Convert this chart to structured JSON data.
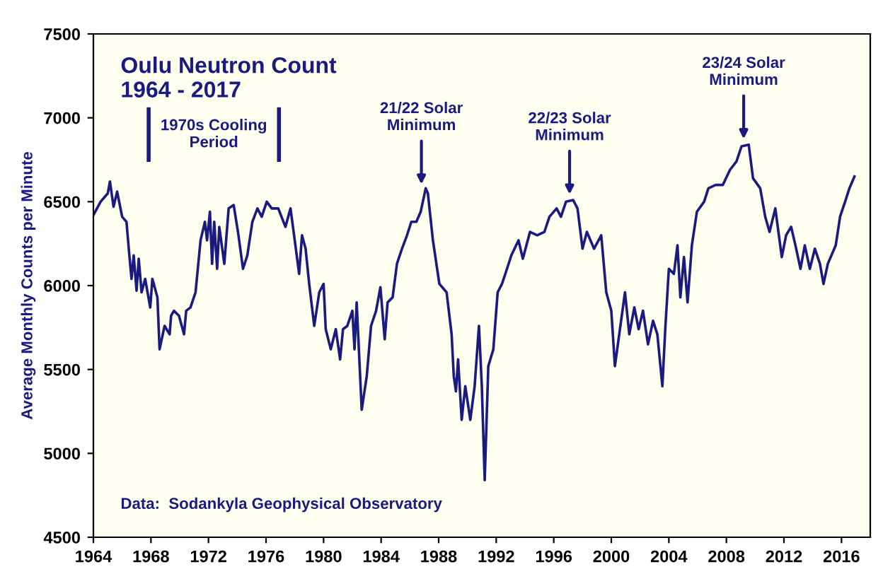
{
  "chart_data": {
    "type": "line",
    "title": "Oulu Neutron Count\n1964 - 2017",
    "ylabel": "Average Monthly Counts per Minute",
    "x": [
      1964.0,
      1964.5,
      1965.0,
      1965.15,
      1965.4,
      1965.65,
      1966.0,
      1966.3,
      1966.5,
      1966.65,
      1966.8,
      1967.0,
      1967.15,
      1967.35,
      1967.6,
      1967.95,
      1968.1,
      1968.45,
      1968.6,
      1968.95,
      1969.3,
      1969.4,
      1969.6,
      1969.95,
      1970.3,
      1970.45,
      1970.75,
      1971.1,
      1971.45,
      1971.75,
      1971.9,
      1972.1,
      1972.25,
      1972.4,
      1972.6,
      1972.75,
      1973.1,
      1973.4,
      1973.75,
      1974.05,
      1974.4,
      1974.7,
      1975.05,
      1975.4,
      1975.7,
      1976.05,
      1976.4,
      1976.85,
      1977.35,
      1977.7,
      1977.95,
      1978.3,
      1978.5,
      1978.75,
      1979.0,
      1979.35,
      1979.7,
      1980.0,
      1980.15,
      1980.5,
      1980.85,
      1981.15,
      1981.35,
      1981.65,
      1982.0,
      1982.15,
      1982.3,
      1982.65,
      1983.0,
      1983.3,
      1983.65,
      1983.95,
      1984.25,
      1984.45,
      1984.8,
      1985.1,
      1985.45,
      1985.8,
      1986.1,
      1986.45,
      1986.75,
      1987.1,
      1987.25,
      1987.6,
      1988.05,
      1988.55,
      1988.9,
      1989.05,
      1989.2,
      1989.35,
      1989.6,
      1989.85,
      1990.2,
      1990.5,
      1990.8,
      1991.0,
      1991.2,
      1991.45,
      1991.8,
      1992.1,
      1992.4,
      1992.75,
      1993.05,
      1993.55,
      1993.85,
      1994.35,
      1994.85,
      1995.35,
      1995.7,
      1996.2,
      1996.5,
      1996.85,
      1997.35,
      1997.65,
      1998.0,
      1998.3,
      1998.8,
      1999.3,
      1999.65,
      2000.0,
      2000.25,
      2000.6,
      2000.95,
      2001.25,
      2001.6,
      2001.9,
      2002.2,
      2002.55,
      2002.9,
      2003.2,
      2003.55,
      2003.75,
      2004.0,
      2004.35,
      2004.6,
      2004.8,
      2005.05,
      2005.3,
      2005.6,
      2005.95,
      2006.45,
      2006.75,
      2007.25,
      2007.75,
      2008.25,
      2008.7,
      2009.05,
      2009.55,
      2009.85,
      2010.35,
      2010.7,
      2011.0,
      2011.4,
      2011.85,
      2012.15,
      2012.5,
      2012.8,
      2013.15,
      2013.45,
      2013.8,
      2014.15,
      2014.5,
      2014.75,
      2015.05,
      2015.6,
      2015.9,
      2016.25,
      2016.55,
      2016.9
    ],
    "series": [
      {
        "color": "#1a1a80",
        "values": [
          6420,
          6500,
          6550,
          6620,
          6470,
          6560,
          6410,
          6380,
          6180,
          6040,
          6180,
          5970,
          6160,
          5960,
          6040,
          5870,
          6040,
          5930,
          5620,
          5760,
          5710,
          5820,
          5850,
          5820,
          5710,
          5850,
          5870,
          5960,
          6270,
          6380,
          6270,
          6440,
          6130,
          6380,
          6100,
          6350,
          6130,
          6460,
          6480,
          6320,
          6100,
          6180,
          6380,
          6460,
          6410,
          6500,
          6460,
          6460,
          6350,
          6460,
          6300,
          6070,
          6300,
          6220,
          6010,
          5760,
          5960,
          6010,
          5740,
          5620,
          5740,
          5560,
          5740,
          5760,
          5850,
          5620,
          5900,
          5260,
          5460,
          5760,
          5850,
          5990,
          5680,
          5900,
          5930,
          6130,
          6220,
          6300,
          6380,
          6380,
          6440,
          6580,
          6550,
          6270,
          6010,
          5960,
          5710,
          5460,
          5370,
          5560,
          5200,
          5400,
          5200,
          5400,
          5760,
          5400,
          4840,
          5520,
          5620,
          5960,
          6010,
          6100,
          6180,
          6270,
          6160,
          6320,
          6300,
          6320,
          6410,
          6460,
          6410,
          6500,
          6510,
          6460,
          6220,
          6320,
          6220,
          6300,
          5960,
          5850,
          5520,
          5740,
          5960,
          5710,
          5870,
          5740,
          5850,
          5650,
          5790,
          5710,
          5400,
          5740,
          6100,
          6070,
          6240,
          5930,
          6170,
          5900,
          6240,
          6440,
          6500,
          6580,
          6600,
          6600,
          6690,
          6740,
          6830,
          6840,
          6640,
          6580,
          6410,
          6320,
          6460,
          6170,
          6300,
          6350,
          6240,
          6100,
          6240,
          6100,
          6220,
          6130,
          6010,
          6130,
          6240,
          6410,
          6500,
          6580,
          6650
        ]
      }
    ],
    "xlim": [
      1964,
      2018
    ],
    "xticks": [
      1964,
      1968,
      1972,
      1976,
      1980,
      1984,
      1988,
      1992,
      1996,
      2000,
      2004,
      2008,
      2012,
      2016
    ],
    "ylim": [
      4500,
      7500
    ],
    "yticks": [
      4500,
      5000,
      5500,
      6000,
      6500,
      7000,
      7500
    ],
    "annotations": [
      "1970s Cooling\nPeriod",
      {
        "text": "21/22 Solar\nMinimum",
        "x": 1986.8,
        "y": 6580
      },
      {
        "text": "22/23 Solar\nMinimum",
        "x": 1997.1,
        "y": 6520
      },
      {
        "text": "23/24 Solar\nMinimum",
        "x": 2009.2,
        "y": 6850
      },
      "Data:  Sodankyla Geophysical Observatory"
    ],
    "grid": false,
    "marker": "none",
    "line_style": "solid"
  }
}
